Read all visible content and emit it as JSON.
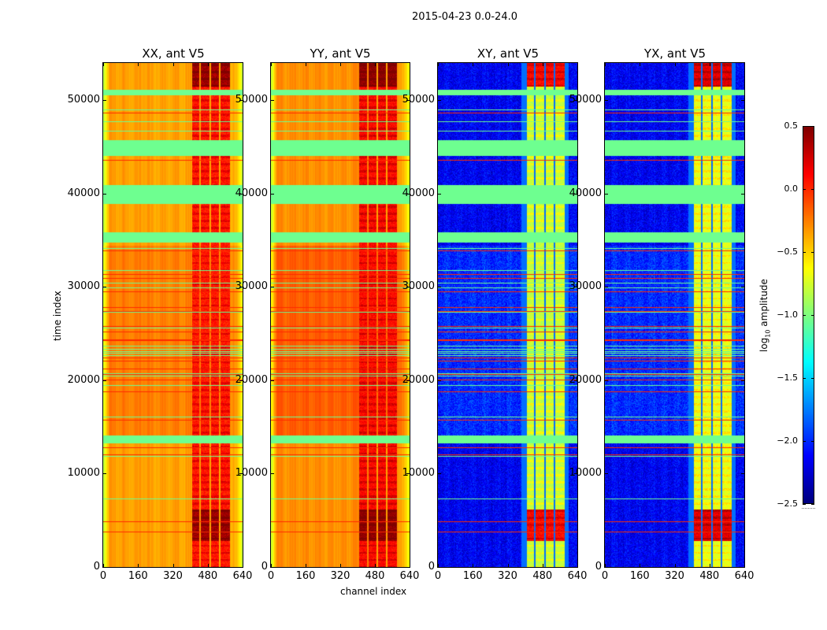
{
  "chart_data": {
    "type": "heatmap",
    "title": "2015-04-23 0.0-24.0",
    "colormap": "jet",
    "colorbar": {
      "label": "log10 amplitude",
      "label_main": "log",
      "label_sub": "10",
      "label_rest": " amplitude",
      "range": [
        -2.5,
        0.5
      ],
      "ticks": [
        0.5,
        0.0,
        -0.5,
        -1.0,
        -1.5,
        -2.0,
        -2.5
      ],
      "tick_labels": [
        "0.5",
        "0.0",
        "−0.5",
        "−1.0",
        "−1.5",
        "−2.0",
        "−2.5"
      ]
    },
    "xlabel": "channel index",
    "ylabel": "time index",
    "xlim": [
      0,
      640
    ],
    "ylim": [
      0,
      54000
    ],
    "xticks": [
      0,
      160,
      320,
      480,
      640
    ],
    "xtick_labels": [
      "0",
      "160",
      "320",
      "480",
      "640"
    ],
    "yticks": [
      0,
      10000,
      20000,
      30000,
      40000,
      50000
    ],
    "ytick_labels": [
      "0",
      "10000",
      "20000",
      "30000",
      "40000",
      "50000"
    ],
    "panels": [
      {
        "title": "XX, ant V5",
        "pol": "XX",
        "base_level": -0.35,
        "rfi_level": 0.05,
        "base_level_middle": -0.25
      },
      {
        "title": "YY, ant V5",
        "pol": "YY",
        "base_level": -0.3,
        "rfi_level": 0.1,
        "base_level_middle": -0.15
      },
      {
        "title": "XY, ant V5",
        "pol": "XY",
        "base_level": -2.15,
        "rfi_level": -0.8,
        "base_level_middle": -2.0
      },
      {
        "title": "YX, ant V5",
        "pol": "YX",
        "base_level": -2.15,
        "rfi_level": -0.7,
        "base_level_middle": -2.0
      }
    ],
    "rfi_channel_ranges": [
      [
        405,
        440
      ],
      [
        448,
        485
      ],
      [
        492,
        530
      ],
      [
        538,
        580
      ]
    ],
    "flagged_time_ranges": [
      [
        38900,
        41000
      ],
      [
        34800,
        35900
      ],
      [
        44100,
        45800
      ],
      [
        50600,
        51200
      ],
      [
        13300,
        14100
      ]
    ],
    "high_amplitude_time_ranges": [
      [
        2800,
        6200
      ],
      [
        51500,
        54000
      ]
    ],
    "flagged_row_level": -1.05,
    "outlier_row_level": 0.0
  }
}
